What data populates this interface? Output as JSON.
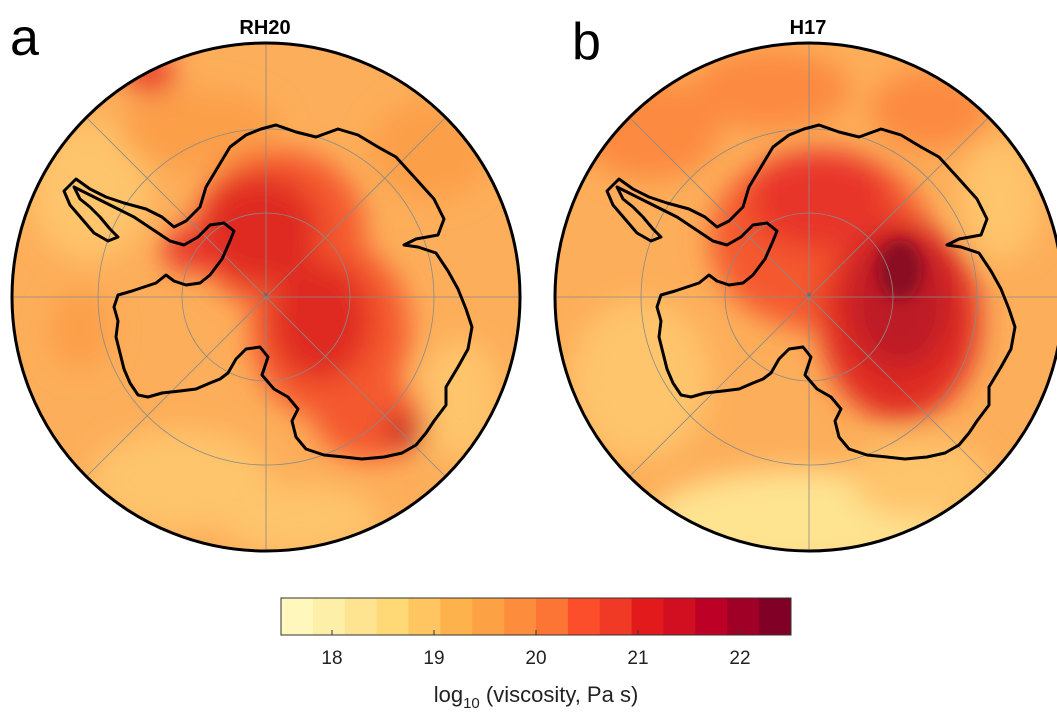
{
  "panels": [
    {
      "letter": "a",
      "title": "RH20"
    },
    {
      "letter": "b",
      "title": "H17"
    }
  ],
  "colorbar": {
    "label_prefix": "log",
    "label_sub": "10",
    "label_suffix": " (viscosity, Pa s)",
    "ticks": [
      "18",
      "19",
      "20",
      "21",
      "22"
    ],
    "range": [
      17.5,
      22.5
    ],
    "colors": [
      "#fff7bc",
      "#feefa8",
      "#fee391",
      "#fed976",
      "#fec560",
      "#feb24c",
      "#fda244",
      "#fd8d3c",
      "#fc7535",
      "#fc4e2a",
      "#f03a26",
      "#e31a1c",
      "#d20f20",
      "#bd0026",
      "#a00026",
      "#800026"
    ]
  },
  "map_colors": {
    "background": "#fdae5a",
    "ocean_light": "#fec56c",
    "land_mid": "#f4582f",
    "land_dark": "#df2a22",
    "land_darkest": "#a8102a",
    "coast": "#000000",
    "graticule": "#8a8a8a"
  }
}
